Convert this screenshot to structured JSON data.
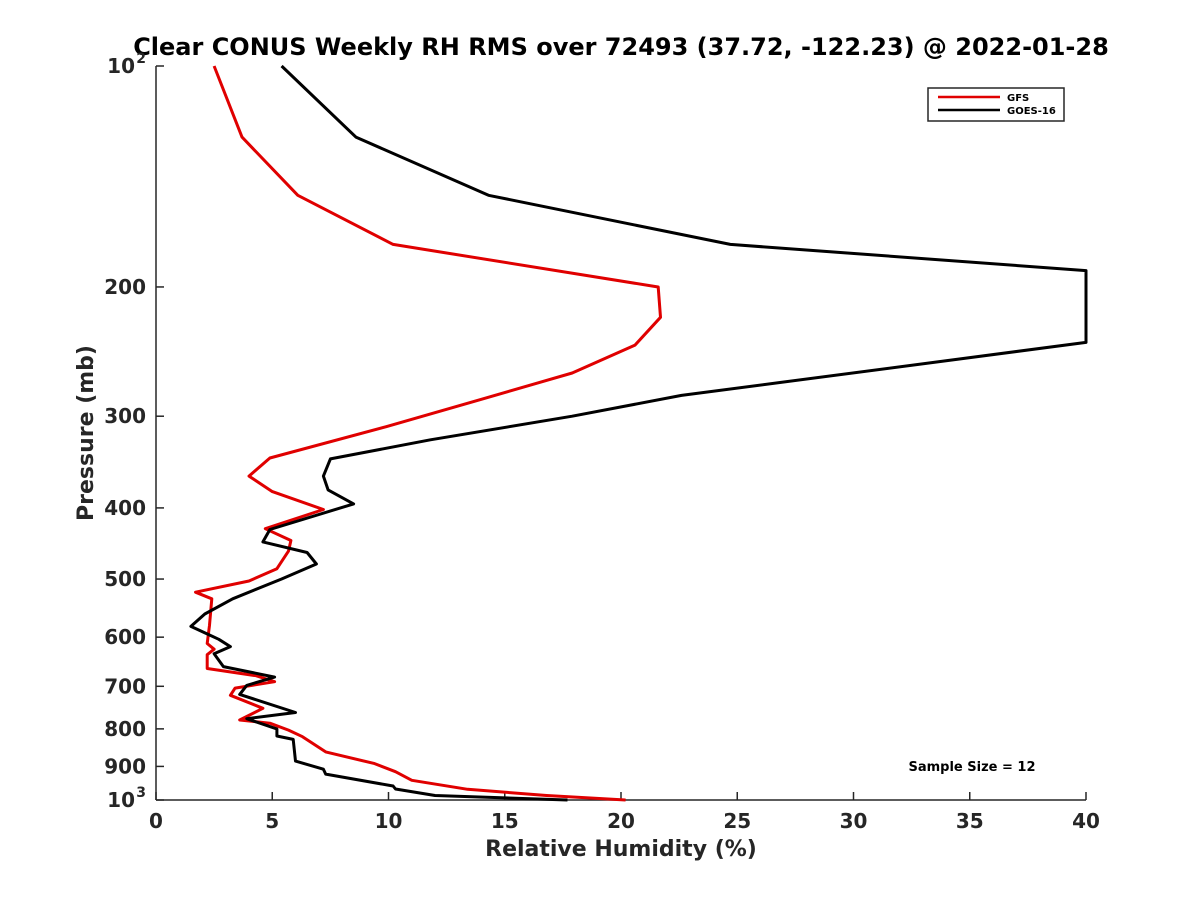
{
  "chart_data": {
    "type": "line",
    "title": "Clear CONUS Weekly RH RMS over 72493 (37.72, -122.23) @ 2022-01-28",
    "xlabel": "Relative Humidity (%)",
    "ylabel": "Pressure (mb)",
    "xlim": [
      0,
      40
    ],
    "ylim": [
      100,
      1000
    ],
    "y_scale": "log",
    "y_reversed": true,
    "grid": false,
    "legend_position": "top-right",
    "x_ticks": [
      "0",
      "5",
      "10",
      "15",
      "20",
      "25",
      "30",
      "35",
      "40"
    ],
    "x_tick_values": [
      0,
      5,
      10,
      15,
      20,
      25,
      30,
      35,
      40
    ],
    "y_ticks": [
      {
        "value": 100,
        "base": "10",
        "exp": "2"
      },
      {
        "value": 200,
        "text": "200"
      },
      {
        "value": 300,
        "text": "300"
      },
      {
        "value": 400,
        "text": "400"
      },
      {
        "value": 500,
        "text": "500"
      },
      {
        "value": 600,
        "text": "600"
      },
      {
        "value": 700,
        "text": "700"
      },
      {
        "value": 800,
        "text": "800"
      },
      {
        "value": 900,
        "text": "900"
      },
      {
        "value": 1000,
        "base": "10",
        "exp": "3"
      }
    ],
    "annotation": "Sample Size = 12",
    "series": [
      {
        "name": "GFS",
        "color": "#e00000",
        "points": [
          [
            2.5,
            100
          ],
          [
            3.7,
            125
          ],
          [
            6.1,
            150
          ],
          [
            10.2,
            175
          ],
          [
            21.6,
            200
          ],
          [
            21.7,
            220
          ],
          [
            20.6,
            240
          ],
          [
            17.9,
            262
          ],
          [
            13.9,
            285
          ],
          [
            9.9,
            310
          ],
          [
            4.9,
            342
          ],
          [
            4.0,
            362
          ],
          [
            5.0,
            380
          ],
          [
            7.2,
            402
          ],
          [
            4.7,
            427
          ],
          [
            5.8,
            443
          ],
          [
            5.7,
            458
          ],
          [
            5.2,
            484
          ],
          [
            4.0,
            503
          ],
          [
            1.7,
            521
          ],
          [
            2.4,
            532
          ],
          [
            2.3,
            578
          ],
          [
            2.2,
            612
          ],
          [
            2.5,
            623
          ],
          [
            2.2,
            634
          ],
          [
            2.2,
            662
          ],
          [
            4.3,
            677
          ],
          [
            5.1,
            690
          ],
          [
            3.4,
            704
          ],
          [
            3.2,
            720
          ],
          [
            4.6,
            750
          ],
          [
            3.6,
            778
          ],
          [
            4.9,
            786
          ],
          [
            5.7,
            803
          ],
          [
            6.3,
            820
          ],
          [
            7.3,
            860
          ],
          [
            9.4,
            892
          ],
          [
            10.3,
            915
          ],
          [
            11.0,
            940
          ],
          [
            13.4,
            967
          ],
          [
            16.8,
            986
          ],
          [
            20.2,
            1000
          ]
        ]
      },
      {
        "name": "GOES-16",
        "color": "#000000",
        "points": [
          [
            5.4,
            100
          ],
          [
            8.6,
            125
          ],
          [
            14.3,
            150
          ],
          [
            24.7,
            175
          ],
          [
            40.0,
            190
          ],
          [
            40.0,
            238
          ],
          [
            22.6,
            281
          ],
          [
            17.9,
            300
          ],
          [
            11.8,
            323
          ],
          [
            7.5,
            343
          ],
          [
            7.2,
            362
          ],
          [
            7.4,
            378
          ],
          [
            8.5,
            395
          ],
          [
            4.9,
            428
          ],
          [
            4.6,
            445
          ],
          [
            6.5,
            460
          ],
          [
            6.9,
            477
          ],
          [
            5.4,
            500
          ],
          [
            3.3,
            532
          ],
          [
            2.1,
            558
          ],
          [
            1.5,
            580
          ],
          [
            2.7,
            604
          ],
          [
            3.2,
            618
          ],
          [
            2.5,
            632
          ],
          [
            2.9,
            658
          ],
          [
            5.1,
            680
          ],
          [
            3.9,
            698
          ],
          [
            3.6,
            718
          ],
          [
            6.0,
            760
          ],
          [
            3.9,
            775
          ],
          [
            5.2,
            800
          ],
          [
            5.2,
            818
          ],
          [
            5.9,
            827
          ],
          [
            6.0,
            885
          ],
          [
            7.2,
            908
          ],
          [
            7.3,
            922
          ],
          [
            10.2,
            957
          ],
          [
            10.3,
            966
          ],
          [
            12.0,
            986
          ],
          [
            17.7,
            1000
          ]
        ]
      }
    ]
  }
}
